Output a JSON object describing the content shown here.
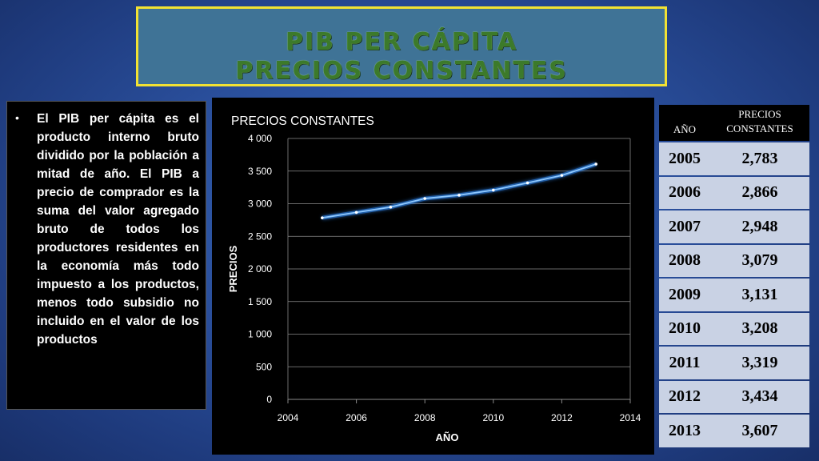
{
  "title": {
    "line1": "PIB PER CÁPITA",
    "line2": "PRECIOS CONSTANTES"
  },
  "description": {
    "bullet": "•",
    "text": "El PIB per cápita es el producto interno bruto dividido por la población a mitad de año. El PIB a precio de comprador es la suma del valor agregado bruto de todos los productores residentes en la economía más todo impuesto a los productos, menos todo subsidio no incluido en el valor de los productos"
  },
  "table": {
    "headers": [
      "AÑO",
      "PRECIOS CONSTANTES"
    ],
    "rows": [
      [
        "2005",
        "2,783"
      ],
      [
        "2006",
        "2,866"
      ],
      [
        "2007",
        "2,948"
      ],
      [
        "2008",
        "3,079"
      ],
      [
        "2009",
        "3,131"
      ],
      [
        "2010",
        "3,208"
      ],
      [
        "2011",
        "3,319"
      ],
      [
        "2012",
        "3,434"
      ],
      [
        "2013",
        "3,607"
      ]
    ]
  },
  "chart_data": {
    "type": "line",
    "title": "PRECIOS CONSTANTES",
    "xlabel": "AÑO",
    "ylabel": "PRECIOS",
    "xlim": [
      2004,
      2014
    ],
    "ylim": [
      0,
      4000
    ],
    "x_ticks": [
      2004,
      2006,
      2008,
      2010,
      2012,
      2014
    ],
    "x_tick_labels": [
      "2004",
      "2006",
      "2008",
      "2010",
      "2012",
      "2014"
    ],
    "y_ticks": [
      0,
      500,
      1000,
      1500,
      2000,
      2500,
      3000,
      3500,
      4000
    ],
    "y_tick_labels": [
      "0",
      "500",
      "1 000",
      "1 500",
      "2 000",
      "2 500",
      "3 000",
      "3 500",
      "4 000"
    ],
    "grid": "horizontal",
    "series": [
      {
        "x": [
          2005,
          2006,
          2007,
          2008,
          2009,
          2010,
          2011,
          2012,
          2013
        ],
        "values": [
          2783,
          2866,
          2948,
          3079,
          3131,
          3208,
          3319,
          3434,
          3607
        ]
      }
    ],
    "colors": {
      "line": "#8ec8ff",
      "glow": "#2f7fe0",
      "grid": "#8a8a8a",
      "text": "#ffffff"
    }
  }
}
